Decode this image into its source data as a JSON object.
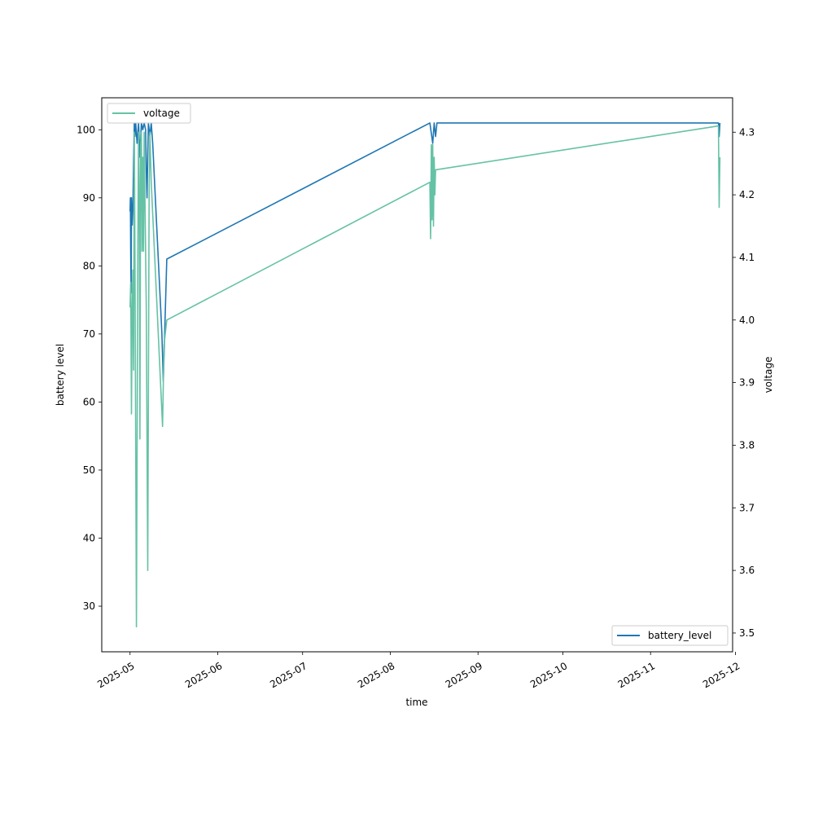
{
  "chart_data": {
    "type": "line",
    "xlabel": "time",
    "x_ticks": [
      "2025-05",
      "2025-06",
      "2025-07",
      "2025-08",
      "2025-09",
      "2025-10",
      "2025-11",
      "2025-12"
    ],
    "xlim": [
      "2025-04-21",
      "2025-11-30"
    ],
    "ylabel": "battery level",
    "y_ticks": [
      30,
      40,
      50,
      60,
      70,
      80,
      90,
      100
    ],
    "ylim": [
      23.3,
      104.7
    ],
    "y2label": "voltage",
    "y2_ticks": [
      "3.5",
      "3.6",
      "3.7",
      "3.8",
      "3.9",
      "4.0",
      "4.1",
      "4.2",
      "4.3"
    ],
    "y2lim": [
      3.47,
      4.355
    ],
    "grid": false,
    "series": [
      {
        "name": "battery_level",
        "axis": "left",
        "color": "#1f77b4",
        "legend_position": "lower-right",
        "points": [
          [
            "2025-05-01 00:00",
            88
          ],
          [
            "2025-05-01 03:00",
            90
          ],
          [
            "2025-05-01 06:00",
            82
          ],
          [
            "2025-05-01 09:00",
            76
          ],
          [
            "2025-05-01 12:00",
            90
          ],
          [
            "2025-05-01 18:00",
            86
          ],
          [
            "2025-05-02 00:00",
            88
          ],
          [
            "2025-05-02 06:00",
            95
          ],
          [
            "2025-05-02 12:00",
            101
          ],
          [
            "2025-05-02 18:00",
            99
          ],
          [
            "2025-05-03 00:00",
            101
          ],
          [
            "2025-05-03 12:00",
            98
          ],
          [
            "2025-05-04 00:00",
            101
          ],
          [
            "2025-05-04 12:00",
            96
          ],
          [
            "2025-05-05 00:00",
            101
          ],
          [
            "2025-05-05 12:00",
            100
          ],
          [
            "2025-05-06 00:00",
            101
          ],
          [
            "2025-05-06 12:00",
            100
          ],
          [
            "2025-05-06 18:00",
            94
          ],
          [
            "2025-05-07 00:00",
            90
          ],
          [
            "2025-05-07 06:00",
            96
          ],
          [
            "2025-05-07 12:00",
            101
          ],
          [
            "2025-05-08 00:00",
            99
          ],
          [
            "2025-05-08 12:00",
            101
          ],
          [
            "2025-05-09 00:00",
            98
          ],
          [
            "2025-05-12 06:00",
            70
          ],
          [
            "2025-05-12 18:00",
            63
          ],
          [
            "2025-05-14 00:00",
            81
          ],
          [
            "2025-08-15 00:00",
            101
          ],
          [
            "2025-08-16 00:00",
            98
          ],
          [
            "2025-08-16 12:00",
            101
          ],
          [
            "2025-08-17 00:00",
            99
          ],
          [
            "2025-08-17 12:00",
            101
          ],
          [
            "2025-11-25 00:00",
            101
          ],
          [
            "2025-11-25 06:00",
            99
          ],
          [
            "2025-11-25 12:00",
            101
          ]
        ]
      },
      {
        "name": "voltage",
        "axis": "right",
        "color": "#66c2a5",
        "legend_position": "upper-left",
        "points": [
          [
            "2025-05-01 00:00",
            4.02
          ],
          [
            "2025-05-01 06:00",
            4.06
          ],
          [
            "2025-05-01 12:00",
            3.85
          ],
          [
            "2025-05-01 18:00",
            4.02
          ],
          [
            "2025-05-02 00:00",
            4.08
          ],
          [
            "2025-05-02 06:00",
            3.92
          ],
          [
            "2025-05-02 12:00",
            4.3
          ],
          [
            "2025-05-02 18:00",
            4.1
          ],
          [
            "2025-05-03 06:00",
            3.51
          ],
          [
            "2025-05-03 18:00",
            4.1
          ],
          [
            "2025-05-04 00:00",
            4.3
          ],
          [
            "2025-05-04 06:00",
            4.22
          ],
          [
            "2025-05-04 12:00",
            3.81
          ],
          [
            "2025-05-04 18:00",
            4.28
          ],
          [
            "2025-05-05 00:00",
            4.3
          ],
          [
            "2025-05-05 06:00",
            4.11
          ],
          [
            "2025-05-05 12:00",
            4.26
          ],
          [
            "2025-05-05 18:00",
            4.11
          ],
          [
            "2025-05-06 00:00",
            4.3
          ],
          [
            "2025-05-06 06:00",
            4.2
          ],
          [
            "2025-05-06 18:00",
            4.02
          ],
          [
            "2025-05-07 06:00",
            3.6
          ],
          [
            "2025-05-07 18:00",
            4.2
          ],
          [
            "2025-05-08 00:00",
            4.3
          ],
          [
            "2025-05-08 12:00",
            4.22
          ],
          [
            "2025-05-12 12:00",
            3.83
          ],
          [
            "2025-05-13 00:00",
            3.96
          ],
          [
            "2025-05-14 00:00",
            4.0
          ],
          [
            "2025-08-15 00:00",
            4.22
          ],
          [
            "2025-08-15 06:00",
            4.13
          ],
          [
            "2025-08-15 12:00",
            4.28
          ],
          [
            "2025-08-15 18:00",
            4.16
          ],
          [
            "2025-08-16 00:00",
            4.28
          ],
          [
            "2025-08-16 06:00",
            4.15
          ],
          [
            "2025-08-16 12:00",
            4.26
          ],
          [
            "2025-08-16 18:00",
            4.2
          ],
          [
            "2025-08-17 00:00",
            4.24
          ],
          [
            "2025-11-25 00:00",
            4.31
          ],
          [
            "2025-11-25 06:00",
            4.18
          ],
          [
            "2025-11-25 12:00",
            4.26
          ]
        ]
      }
    ]
  }
}
